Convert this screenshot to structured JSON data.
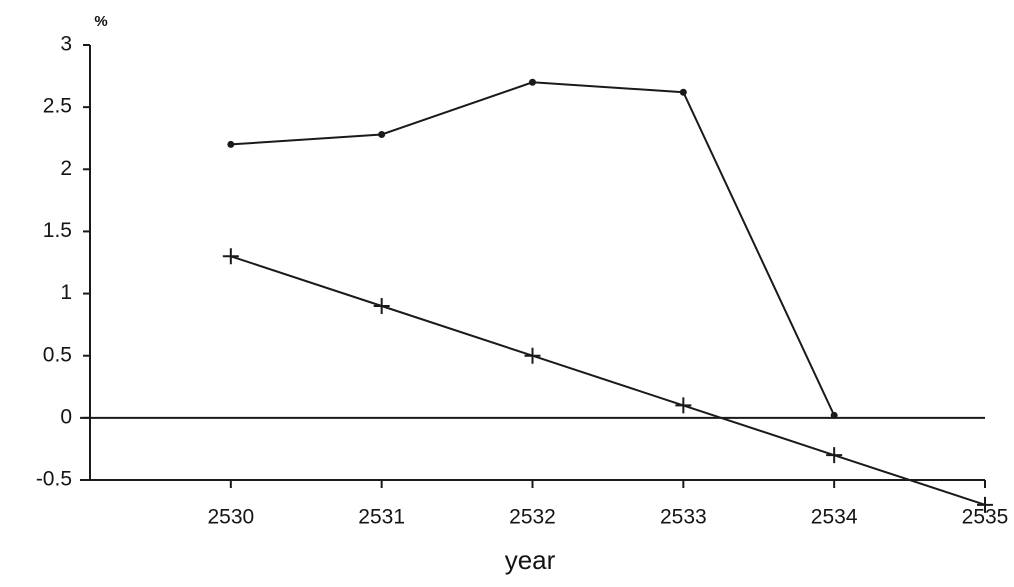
{
  "chart_data": {
    "type": "line",
    "y_unit": "%",
    "x_label": "year",
    "x": [
      2530,
      2531,
      2532,
      2533,
      2534,
      2535
    ],
    "xlim": [
      2529,
      2535
    ],
    "xticks": [
      2530,
      2531,
      2532,
      2533,
      2534,
      2535
    ],
    "ylim": [
      -0.5,
      3
    ],
    "yticks": [
      -0.5,
      0,
      0.5,
      1,
      1.5,
      2,
      2.5,
      3
    ],
    "zero_line": true,
    "series": [
      {
        "color": "#1a1a1a",
        "marker": "dot",
        "values": [
          2.2,
          2.28,
          2.7,
          2.62,
          0.02,
          null
        ]
      },
      {
        "color": "#1a1a1a",
        "marker": "plus",
        "values": [
          1.3,
          0.9,
          0.5,
          0.1,
          -0.3,
          -0.7
        ]
      }
    ]
  }
}
